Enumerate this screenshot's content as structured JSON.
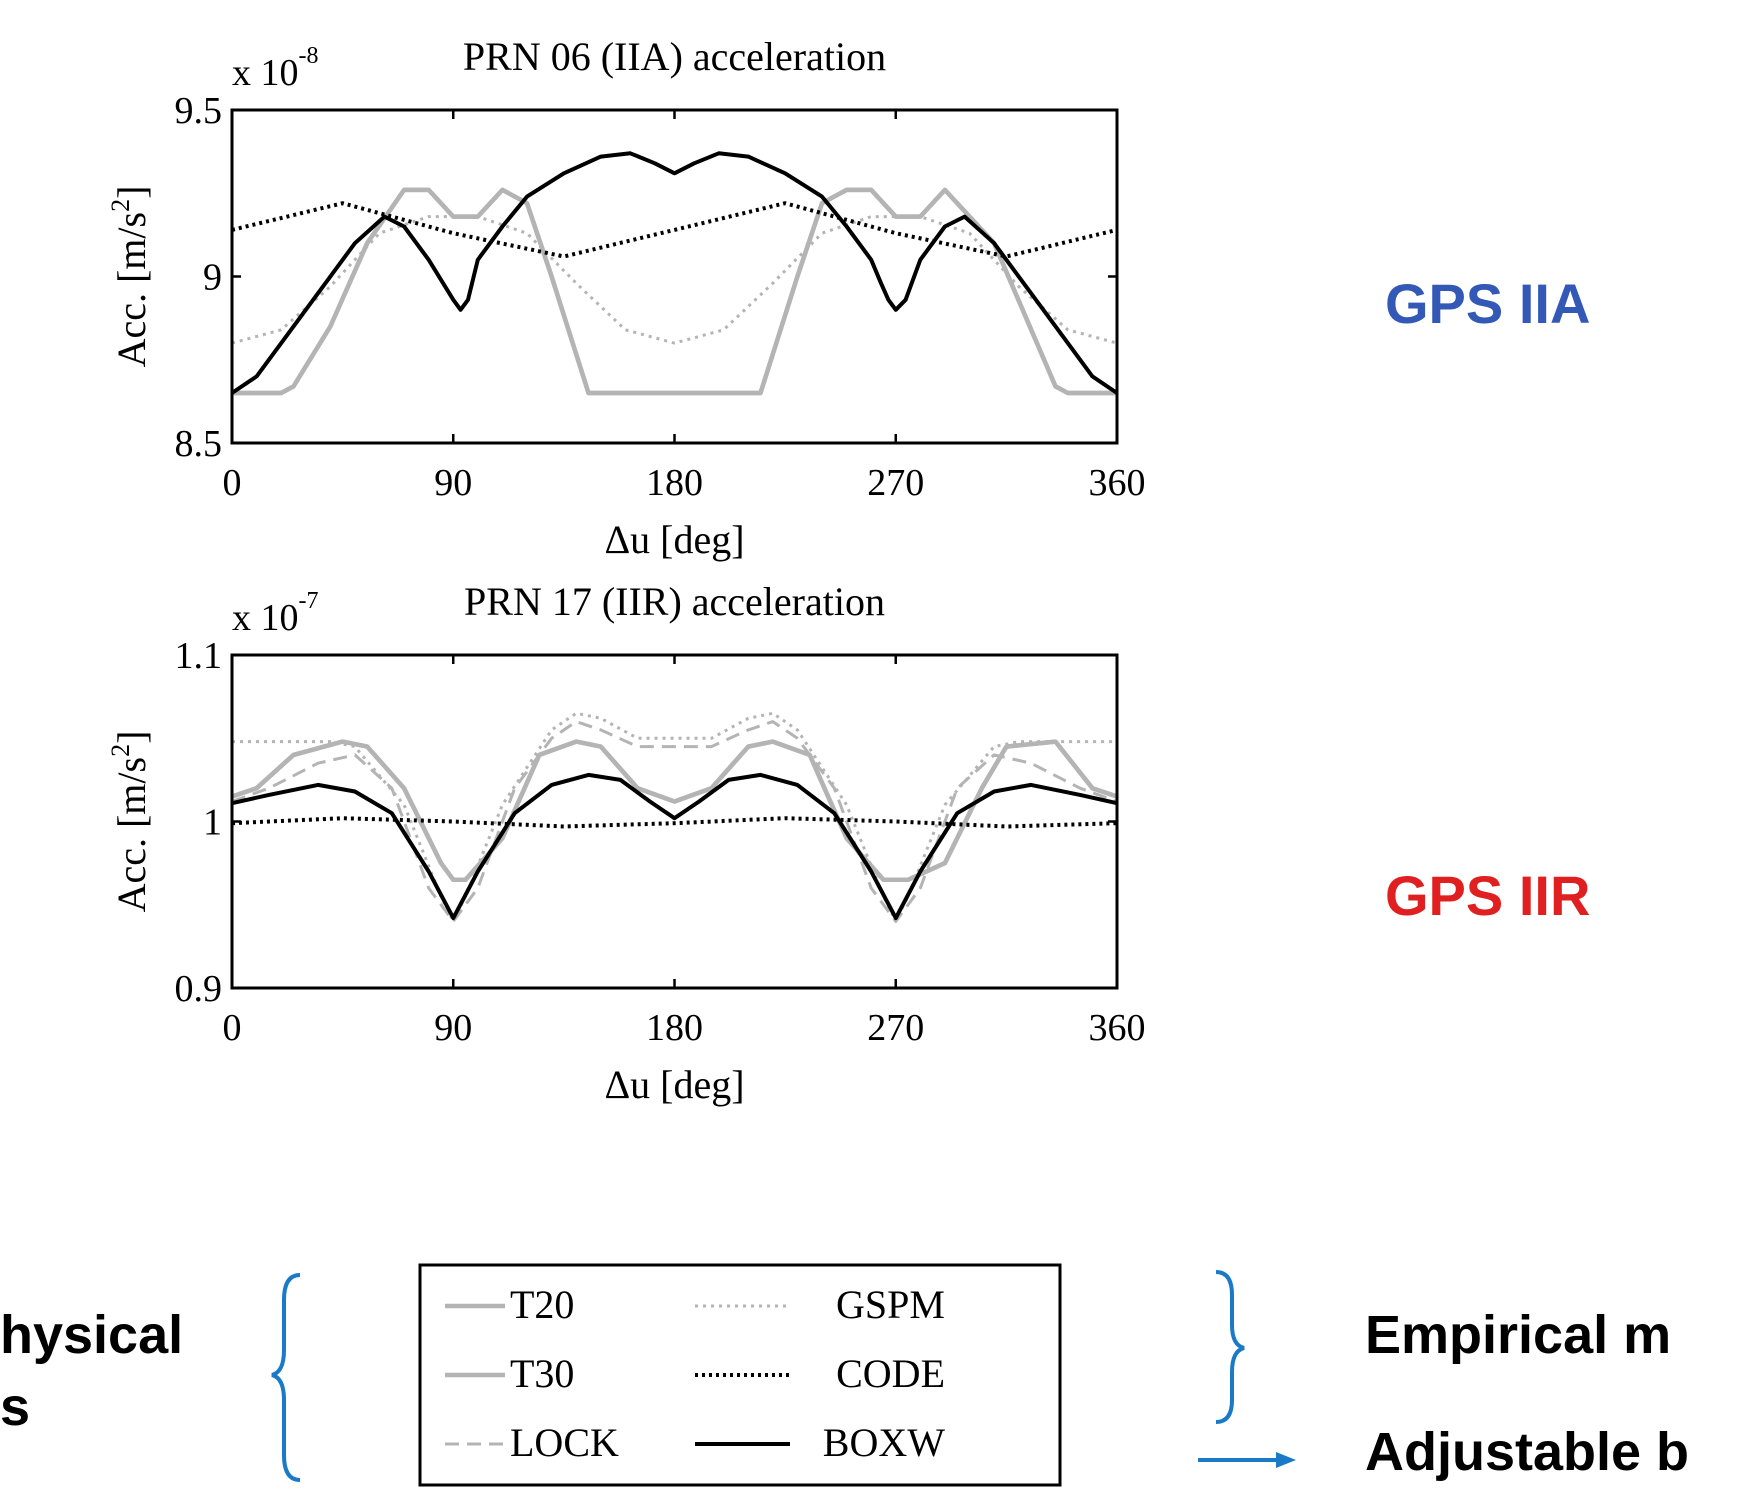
{
  "chart_data": [
    {
      "type": "line",
      "title": "PRN 06 (IIA) acceleration",
      "exponent_label": "x 10",
      "exponent": "-8",
      "ylabel": "Acc. [m/s",
      "ylabel_sup": "2",
      "ylabel_close": "]",
      "xlabel": "Δu [deg]",
      "xlim": [
        0,
        360
      ],
      "ylim": [
        8.5,
        9.5
      ],
      "xticks": [
        0,
        90,
        180,
        270,
        360
      ],
      "xtick_labels": [
        "0",
        "90",
        "180",
        "270",
        "360"
      ],
      "yticks": [
        8.5,
        9,
        9.5
      ],
      "ytick_labels": [
        "8.5",
        "9",
        "9.5"
      ],
      "side_label": "GPS IIA",
      "side_label_color": "#3358b5",
      "series": [
        {
          "name": "T20",
          "style": "solid-gray",
          "x": [
            0,
            20,
            25,
            40,
            55,
            70,
            80,
            90,
            100,
            110,
            120,
            130,
            145,
            170,
            180,
            190,
            215,
            230,
            240,
            250,
            260,
            270,
            280,
            290,
            310,
            335,
            340,
            360
          ],
          "y": [
            8.65,
            8.65,
            8.67,
            8.85,
            9.1,
            9.26,
            9.26,
            9.18,
            9.18,
            9.26,
            9.22,
            9.0,
            8.65,
            8.65,
            8.65,
            8.65,
            8.65,
            9.0,
            9.22,
            9.26,
            9.26,
            9.18,
            9.18,
            9.26,
            9.1,
            8.67,
            8.65,
            8.65
          ]
        },
        {
          "name": "T30",
          "style": "solid-gray",
          "x": [
            0,
            20,
            25,
            40,
            55,
            70,
            80,
            90,
            100,
            110,
            120,
            130,
            145,
            170,
            180,
            190,
            215,
            230,
            240,
            250,
            260,
            270,
            280,
            290,
            310,
            335,
            340,
            360
          ],
          "y": [
            8.65,
            8.65,
            8.67,
            8.85,
            9.1,
            9.26,
            9.26,
            9.18,
            9.18,
            9.26,
            9.22,
            9.0,
            8.65,
            8.65,
            8.65,
            8.65,
            8.65,
            9.0,
            9.22,
            9.26,
            9.26,
            9.18,
            9.18,
            9.26,
            9.1,
            8.67,
            8.65,
            8.65
          ]
        },
        {
          "name": "LOCK",
          "style": "dashed-gray",
          "x": [
            0,
            360
          ],
          "y": [
            9.5,
            9.5
          ],
          "hidden": true
        },
        {
          "name": "GSPM",
          "style": "dotted-gray",
          "x": [
            0,
            20,
            40,
            60,
            80,
            90,
            100,
            120,
            140,
            160,
            180,
            200,
            220,
            240,
            260,
            270,
            280,
            300,
            320,
            340,
            360
          ],
          "y": [
            8.8,
            8.84,
            8.97,
            9.13,
            9.18,
            9.18,
            9.18,
            9.13,
            8.98,
            8.84,
            8.8,
            8.84,
            8.98,
            9.13,
            9.18,
            9.18,
            9.18,
            9.13,
            8.97,
            8.84,
            8.8
          ]
        },
        {
          "name": "CODE",
          "style": "dotted-black",
          "x": [
            0,
            45,
            90,
            135,
            180,
            225,
            270,
            315,
            360
          ],
          "y": [
            9.14,
            9.22,
            9.13,
            9.06,
            9.14,
            9.22,
            9.13,
            9.06,
            9.14
          ]
        },
        {
          "name": "BOXW",
          "style": "solid-black",
          "x": [
            0,
            10,
            30,
            50,
            62,
            70,
            80,
            90,
            93,
            96,
            100,
            110,
            120,
            135,
            150,
            162,
            172,
            180,
            188,
            198,
            210,
            225,
            240,
            250,
            260,
            264,
            267,
            270,
            274,
            280,
            290,
            298,
            310,
            330,
            350,
            360
          ],
          "y": [
            8.65,
            8.7,
            8.9,
            9.1,
            9.18,
            9.15,
            9.05,
            8.93,
            8.9,
            8.93,
            9.05,
            9.15,
            9.24,
            9.31,
            9.36,
            9.37,
            9.34,
            9.31,
            9.34,
            9.37,
            9.36,
            9.31,
            9.24,
            9.15,
            9.05,
            8.98,
            8.93,
            8.9,
            8.93,
            9.05,
            9.15,
            9.18,
            9.1,
            8.9,
            8.7,
            8.65
          ]
        }
      ]
    },
    {
      "type": "line",
      "title": "PRN 17 (IIR) acceleration",
      "exponent_label": "x 10",
      "exponent": "-7",
      "ylabel": "Acc. [m/s",
      "ylabel_sup": "2",
      "ylabel_close": "]",
      "xlabel": "Δu [deg]",
      "xlim": [
        0,
        360
      ],
      "ylim": [
        0.9,
        1.1
      ],
      "xticks": [
        0,
        90,
        180,
        270,
        360
      ],
      "xtick_labels": [
        "0",
        "90",
        "180",
        "270",
        "360"
      ],
      "yticks": [
        0.9,
        1.0,
        1.1
      ],
      "ytick_labels": [
        "0.9",
        "1",
        "1.1"
      ],
      "side_label": "GPS IIR",
      "side_label_color": "#e02020",
      "series": [
        {
          "name": "T20",
          "style": "solid-gray",
          "x": [
            0,
            10,
            25,
            45,
            55,
            70,
            85,
            90,
            95,
            110,
            125,
            140,
            150,
            165,
            180,
            195,
            210,
            220,
            235,
            250,
            265,
            270,
            275,
            290,
            305,
            315,
            335,
            350,
            360
          ],
          "y": [
            1.015,
            1.02,
            1.04,
            1.048,
            1.045,
            1.02,
            0.975,
            0.965,
            0.965,
            0.99,
            1.04,
            1.048,
            1.045,
            1.02,
            1.012,
            1.02,
            1.045,
            1.048,
            1.04,
            0.99,
            0.965,
            0.965,
            0.965,
            0.975,
            1.02,
            1.045,
            1.048,
            1.02,
            1.015
          ]
        },
        {
          "name": "T30",
          "style": "solid-gray",
          "x": [
            0,
            10,
            25,
            45,
            55,
            70,
            85,
            90,
            95,
            110,
            125,
            140,
            150,
            165,
            180,
            195,
            210,
            220,
            235,
            250,
            265,
            270,
            275,
            290,
            305,
            315,
            335,
            350,
            360
          ],
          "y": [
            1.015,
            1.02,
            1.04,
            1.048,
            1.045,
            1.02,
            0.975,
            0.965,
            0.965,
            0.99,
            1.04,
            1.048,
            1.045,
            1.02,
            1.012,
            1.02,
            1.045,
            1.048,
            1.04,
            0.99,
            0.965,
            0.965,
            0.965,
            0.975,
            1.02,
            1.045,
            1.048,
            1.02,
            1.015
          ]
        },
        {
          "name": "LOCK",
          "style": "dashed-gray",
          "x": [
            0,
            15,
            35,
            50,
            65,
            80,
            90,
            100,
            115,
            130,
            140,
            150,
            165,
            180,
            195,
            210,
            220,
            230,
            245,
            260,
            270,
            280,
            295,
            310,
            325,
            345,
            360
          ],
          "y": [
            1.012,
            1.02,
            1.035,
            1.04,
            1.02,
            0.96,
            0.94,
            0.96,
            1.02,
            1.05,
            1.06,
            1.055,
            1.045,
            1.045,
            1.045,
            1.055,
            1.06,
            1.05,
            1.02,
            0.96,
            0.94,
            0.96,
            1.02,
            1.04,
            1.035,
            1.02,
            1.012
          ]
        },
        {
          "name": "GSPM",
          "style": "dotted-gray",
          "x": [
            0,
            25,
            40,
            50,
            70,
            85,
            90,
            95,
            110,
            130,
            140,
            150,
            165,
            180,
            195,
            210,
            220,
            230,
            250,
            265,
            270,
            275,
            290,
            310,
            320,
            335,
            360
          ],
          "y": [
            1.048,
            1.048,
            1.048,
            1.045,
            1.01,
            0.955,
            0.94,
            0.955,
            1.01,
            1.055,
            1.065,
            1.062,
            1.05,
            1.05,
            1.05,
            1.062,
            1.065,
            1.055,
            1.01,
            0.955,
            0.94,
            0.955,
            1.01,
            1.045,
            1.048,
            1.048,
            1.048
          ]
        },
        {
          "name": "CODE",
          "style": "dotted-black",
          "x": [
            0,
            45,
            90,
            135,
            180,
            225,
            270,
            315,
            360
          ],
          "y": [
            0.999,
            1.002,
            1.0,
            0.997,
            0.999,
            1.002,
            1.0,
            0.997,
            0.999
          ]
        },
        {
          "name": "BOXW",
          "style": "solid-black",
          "x": [
            0,
            15,
            35,
            50,
            65,
            80,
            90,
            100,
            115,
            130,
            145,
            158,
            170,
            180,
            190,
            202,
            215,
            230,
            245,
            260,
            270,
            280,
            295,
            310,
            325,
            345,
            360
          ],
          "y": [
            1.011,
            1.016,
            1.022,
            1.018,
            1.005,
            0.97,
            0.942,
            0.97,
            1.005,
            1.022,
            1.028,
            1.025,
            1.012,
            1.002,
            1.012,
            1.025,
            1.028,
            1.022,
            1.005,
            0.97,
            0.942,
            0.97,
            1.005,
            1.018,
            1.022,
            1.016,
            1.011
          ]
        }
      ]
    }
  ],
  "legend": {
    "items": [
      {
        "label": "T20",
        "style": "solid-gray"
      },
      {
        "label": "GSPM",
        "style": "dotted-gray"
      },
      {
        "label": "T30",
        "style": "solid-gray"
      },
      {
        "label": "CODE",
        "style": "dotted-black"
      },
      {
        "label": "LOCK",
        "style": "dashed-gray"
      },
      {
        "label": "BOXW",
        "style": "solid-black"
      }
    ]
  },
  "annotations": {
    "left_text_1": "hysical",
    "left_text_2": "s",
    "right_text_1": "Empirical m",
    "right_text_2": "Adjustable b",
    "brace_color": "#1a7ac8"
  }
}
